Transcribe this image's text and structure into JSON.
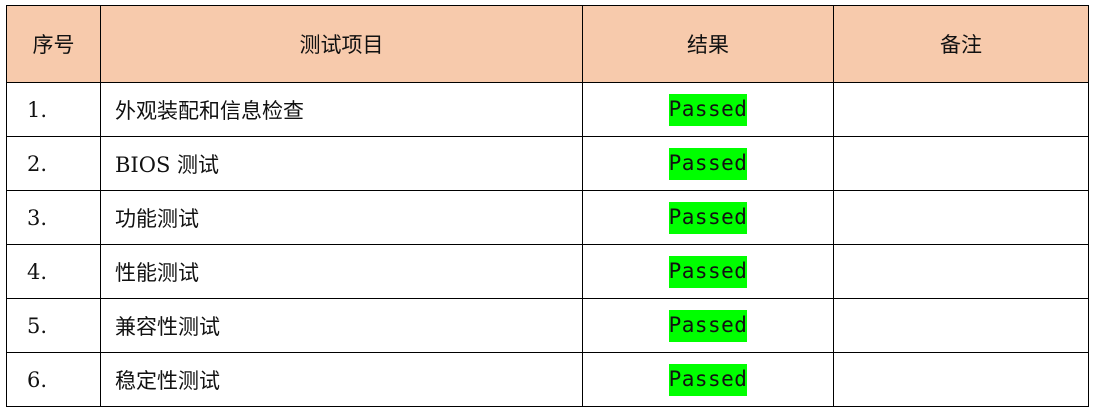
{
  "headers": [
    "序号",
    "测试项目",
    "结果",
    "备注"
  ],
  "rows": [
    {
      "no": "1.",
      "item": "外观装配和信息检查",
      "result": "Passed",
      "note": ""
    },
    {
      "no": "2.",
      "item": "BIOS 测试",
      "result": "Passed",
      "note": ""
    },
    {
      "no": "3.",
      "item": "功能测试",
      "result": "Passed",
      "note": ""
    },
    {
      "no": "4.",
      "item": "性能测试",
      "result": "Passed",
      "note": ""
    },
    {
      "no": "5.",
      "item": "兼容性测试",
      "result": "Passed",
      "note": ""
    },
    {
      "no": "6.",
      "item": "稳定性测试",
      "result": "Passed",
      "note": ""
    }
  ],
  "colors": {
    "header_bg": "#f7caac",
    "passed_highlight": "#00ff00"
  }
}
